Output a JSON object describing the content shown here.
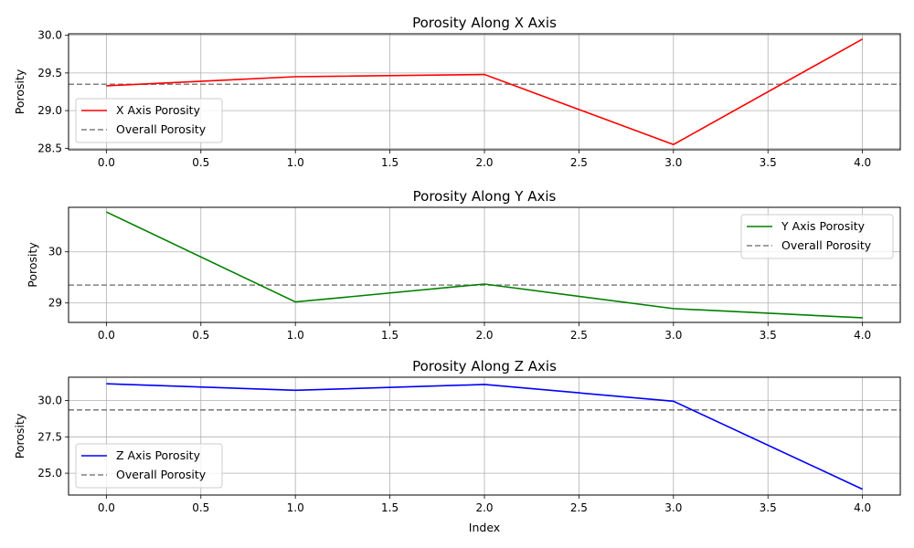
{
  "figure": {
    "background": "#ffffff"
  },
  "overall_porosity": 29.35,
  "chart_data": [
    {
      "type": "line",
      "title": "Porosity Along X Axis",
      "xlabel": "",
      "ylabel": "Porosity",
      "x": [
        0,
        1,
        2,
        3,
        4
      ],
      "xlim": [
        -0.2,
        4.2
      ],
      "ylim": [
        28.48,
        30.02
      ],
      "xticks": [
        0.0,
        0.5,
        1.0,
        1.5,
        2.0,
        2.5,
        3.0,
        3.5,
        4.0
      ],
      "xtick_labels": [
        "0.0",
        "0.5",
        "1.0",
        "1.5",
        "2.0",
        "2.5",
        "3.0",
        "3.5",
        "4.0"
      ],
      "yticks": [
        28.5,
        29.0,
        29.5,
        30.0
      ],
      "ytick_labels": [
        "28.5",
        "29.0",
        "29.5",
        "30.0"
      ],
      "grid": true,
      "legend_position": "lower-left",
      "series": [
        {
          "name": "X Axis Porosity",
          "values": [
            29.33,
            29.45,
            29.48,
            28.55,
            29.95
          ],
          "color": "#ff0000",
          "style": "solid"
        }
      ],
      "reference_line": {
        "name": "Overall Porosity",
        "y": 29.35,
        "color": "#808080",
        "style": "dashed"
      }
    },
    {
      "type": "line",
      "title": "Porosity Along Y Axis",
      "xlabel": "",
      "ylabel": "Porosity",
      "x": [
        0,
        1,
        2,
        3,
        4
      ],
      "xlim": [
        -0.2,
        4.2
      ],
      "ylim": [
        28.62,
        30.87
      ],
      "xticks": [
        0.0,
        0.5,
        1.0,
        1.5,
        2.0,
        2.5,
        3.0,
        3.5,
        4.0
      ],
      "xtick_labels": [
        "0.0",
        "0.5",
        "1.0",
        "1.5",
        "2.0",
        "2.5",
        "3.0",
        "3.5",
        "4.0"
      ],
      "yticks": [
        29,
        30
      ],
      "ytick_labels": [
        "29",
        "30"
      ],
      "grid": true,
      "legend_position": "upper-right",
      "series": [
        {
          "name": "Y Axis Porosity",
          "values": [
            30.78,
            29.02,
            29.37,
            28.89,
            28.71
          ],
          "color": "#008000",
          "style": "solid"
        }
      ],
      "reference_line": {
        "name": "Overall Porosity",
        "y": 29.35,
        "color": "#808080",
        "style": "dashed"
      }
    },
    {
      "type": "line",
      "title": "Porosity Along Z Axis",
      "xlabel": "Index",
      "ylabel": "Porosity",
      "x": [
        0,
        1,
        2,
        3,
        4
      ],
      "xlim": [
        -0.2,
        4.2
      ],
      "ylim": [
        23.5,
        31.6
      ],
      "xticks": [
        0.0,
        0.5,
        1.0,
        1.5,
        2.0,
        2.5,
        3.0,
        3.5,
        4.0
      ],
      "xtick_labels": [
        "0.0",
        "0.5",
        "1.0",
        "1.5",
        "2.0",
        "2.5",
        "3.0",
        "3.5",
        "4.0"
      ],
      "yticks": [
        25.0,
        27.5,
        30.0
      ],
      "ytick_labels": [
        "25.0",
        "27.5",
        "30.0"
      ],
      "grid": true,
      "legend_position": "lower-left",
      "series": [
        {
          "name": "Z Axis Porosity",
          "values": [
            31.15,
            30.7,
            31.1,
            29.95,
            23.9
          ],
          "color": "#0000ff",
          "style": "solid"
        }
      ],
      "reference_line": {
        "name": "Overall Porosity",
        "y": 29.35,
        "color": "#808080",
        "style": "dashed"
      }
    }
  ]
}
